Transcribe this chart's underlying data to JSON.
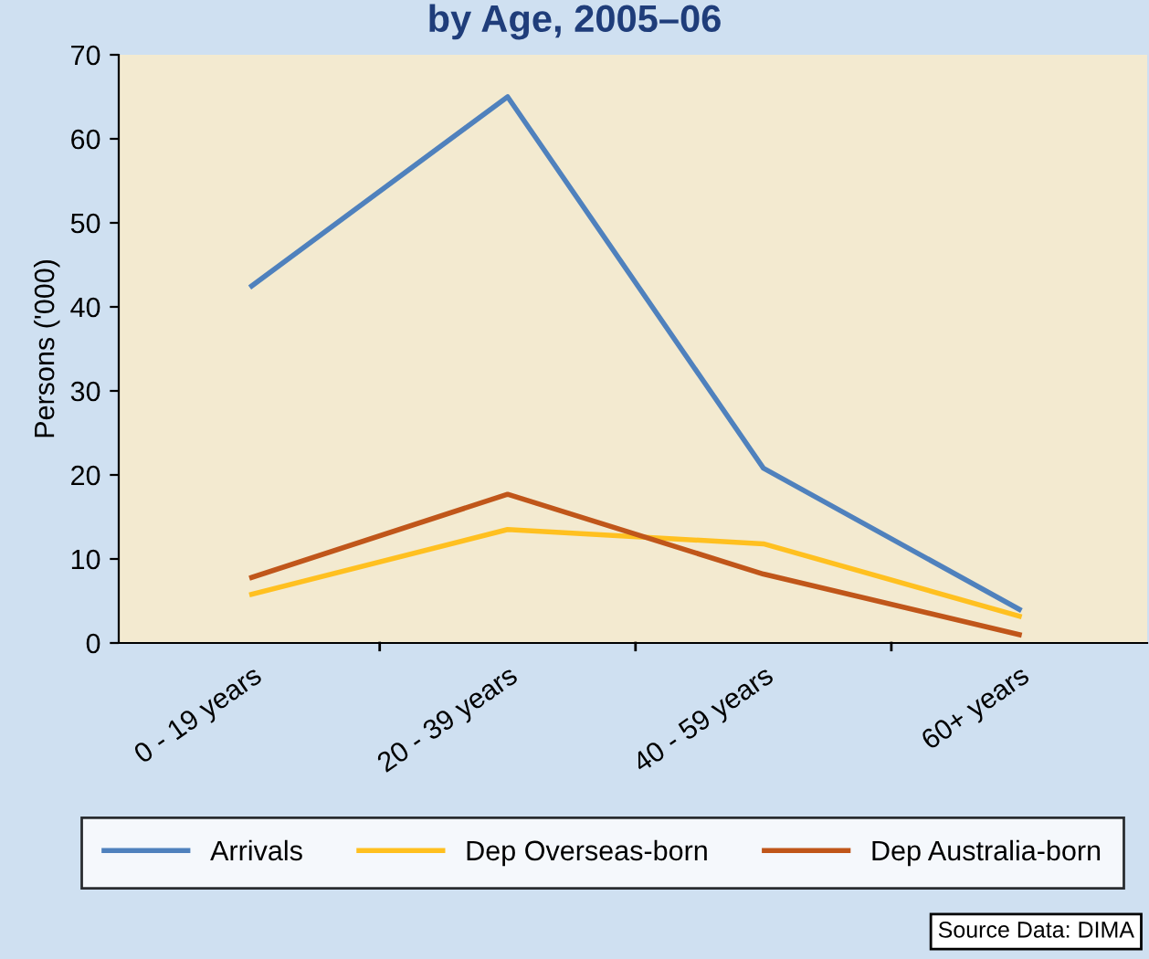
{
  "chart_data": {
    "type": "line",
    "title": "by Age, 2005–06",
    "ylabel": "Persons ('000)",
    "categories": [
      "0 - 19 years",
      "20 - 39 years",
      "40 - 59 years",
      "60+ years"
    ],
    "series": [
      {
        "name": "Arrivals",
        "color": "#4f81bd",
        "values": [
          42.5,
          65,
          20.8,
          4
        ]
      },
      {
        "name": "Dep Overseas-born",
        "color": "#ffc020",
        "values": [
          5.8,
          13.5,
          11.8,
          3.2
        ]
      },
      {
        "name": "Dep Australia-born",
        "color": "#c0561a",
        "values": [
          7.8,
          17.7,
          8.2,
          1
        ]
      }
    ],
    "ylim": [
      0,
      70
    ],
    "yticks": [
      0,
      10,
      20,
      30,
      40,
      50,
      60,
      70
    ],
    "grid": false,
    "legend": "bottom",
    "marker": "none",
    "line_style": "solid",
    "annotations": [
      "Source Data: DIMA"
    ]
  }
}
